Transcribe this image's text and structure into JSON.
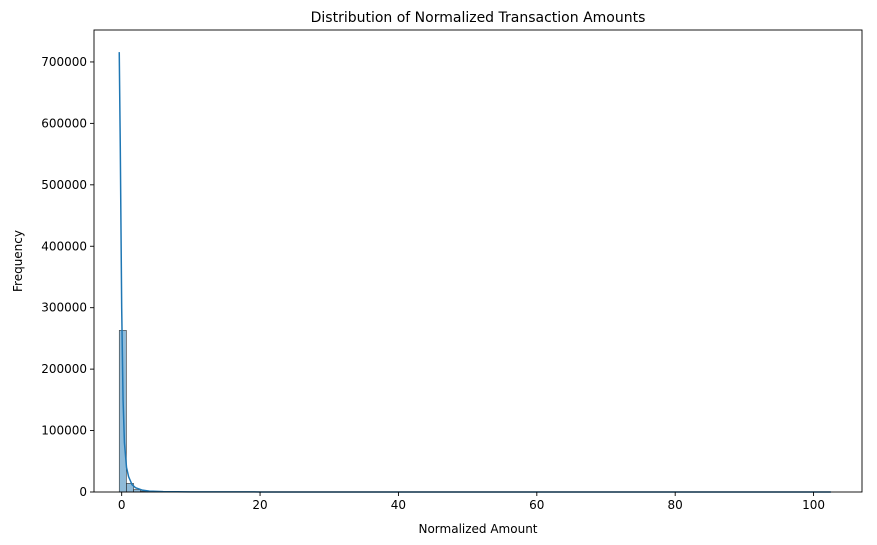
{
  "chart_data": {
    "type": "bar",
    "title": "Distribution of Normalized Transaction Amounts",
    "xlabel": "Normalized Amount",
    "ylabel": "Frequency",
    "xlim": [
      -4,
      107
    ],
    "ylim": [
      0,
      752000
    ],
    "x_ticks": [
      0,
      20,
      40,
      60,
      80,
      100
    ],
    "x_tick_labels": [
      "0",
      "20",
      "40",
      "60",
      "80",
      "100"
    ],
    "y_ticks": [
      0,
      100000,
      200000,
      300000,
      400000,
      500000,
      600000,
      700000
    ],
    "y_tick_labels": [
      "0",
      "100000",
      "200000",
      "300000",
      "400000",
      "500000",
      "600000",
      "700000"
    ],
    "grid": false,
    "bar_color": "#1f77b4",
    "bar_fill_opacity": 0.5,
    "kde_color": "#1f77b4",
    "bins": [
      {
        "x0": -0.35,
        "x1": 0.68,
        "count": 263000
      },
      {
        "x0": 0.68,
        "x1": 1.71,
        "count": 14000
      },
      {
        "x0": 1.71,
        "x1": 2.74,
        "count": 4000
      },
      {
        "x0": 2.74,
        "x1": 3.77,
        "count": 1500
      },
      {
        "x0": 3.77,
        "x1": 4.8,
        "count": 700
      },
      {
        "x0": 4.8,
        "x1": 5.83,
        "count": 400
      },
      {
        "x0": 5.83,
        "x1": 6.86,
        "count": 250
      },
      {
        "x0": 6.86,
        "x1": 7.89,
        "count": 150
      },
      {
        "x0": 7.89,
        "x1": 8.92,
        "count": 100
      },
      {
        "x0": 8.92,
        "x1": 9.95,
        "count": 80
      }
    ],
    "kde": {
      "x": [
        -0.35,
        -0.2,
        0,
        0.2,
        0.4,
        0.7,
        1.0,
        1.5,
        2.0,
        3.0,
        4.0,
        6.0,
        10.0,
        20.0,
        40.0,
        60.0,
        80.0,
        102.5
      ],
      "y": [
        716000,
        560000,
        300000,
        150000,
        80000,
        40000,
        25000,
        12000,
        7000,
        3000,
        1500,
        700,
        300,
        100,
        40,
        20,
        10,
        5
      ]
    }
  }
}
